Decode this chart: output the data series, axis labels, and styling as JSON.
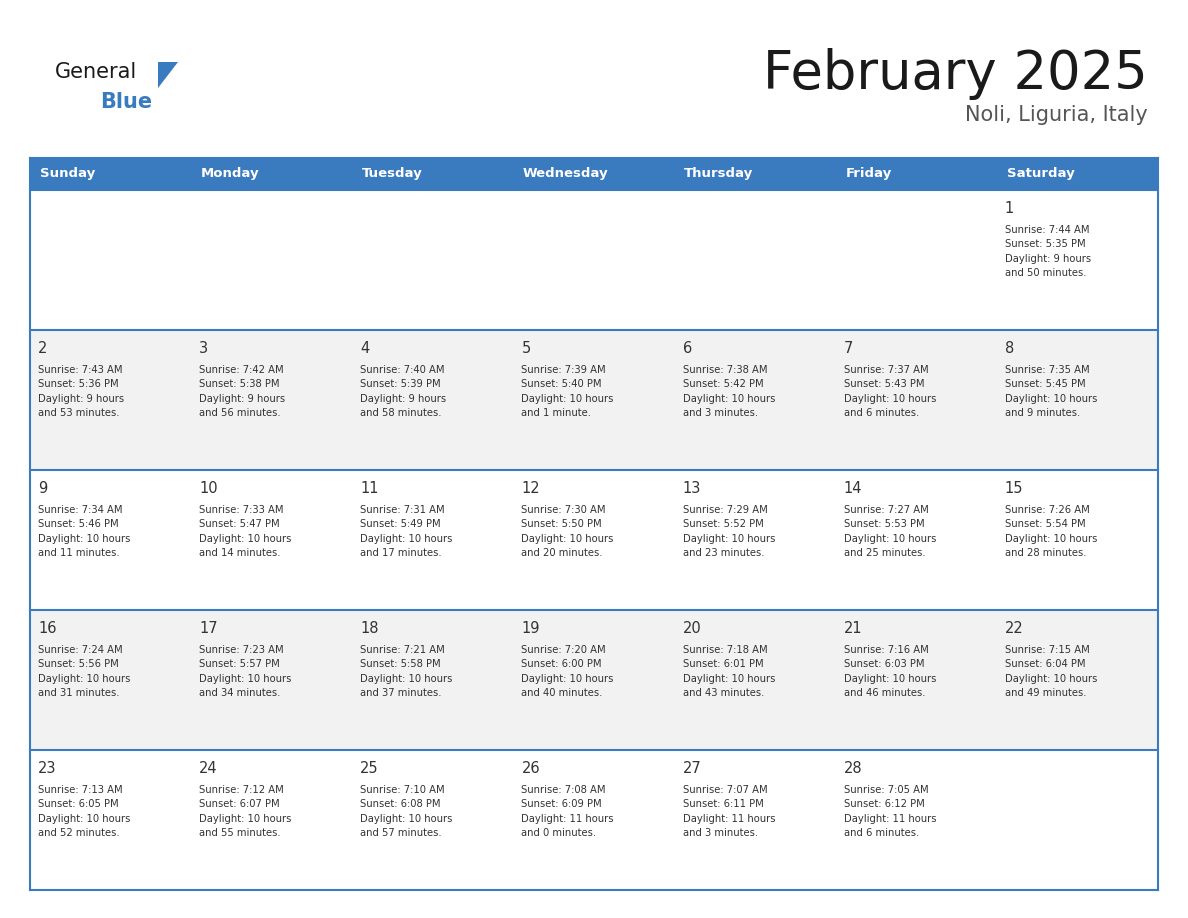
{
  "title": "February 2025",
  "subtitle": "Noli, Liguria, Italy",
  "header_color": "#3a7abf",
  "header_text_color": "#ffffff",
  "cell_bg_even": "#ffffff",
  "cell_bg_odd": "#f2f2f2",
  "border_color": "#3a7abf",
  "text_color": "#333333",
  "days_of_week": [
    "Sunday",
    "Monday",
    "Tuesday",
    "Wednesday",
    "Thursday",
    "Friday",
    "Saturday"
  ],
  "weeks": [
    [
      {
        "day": "",
        "info": ""
      },
      {
        "day": "",
        "info": ""
      },
      {
        "day": "",
        "info": ""
      },
      {
        "day": "",
        "info": ""
      },
      {
        "day": "",
        "info": ""
      },
      {
        "day": "",
        "info": ""
      },
      {
        "day": "1",
        "info": "Sunrise: 7:44 AM\nSunset: 5:35 PM\nDaylight: 9 hours\nand 50 minutes."
      }
    ],
    [
      {
        "day": "2",
        "info": "Sunrise: 7:43 AM\nSunset: 5:36 PM\nDaylight: 9 hours\nand 53 minutes."
      },
      {
        "day": "3",
        "info": "Sunrise: 7:42 AM\nSunset: 5:38 PM\nDaylight: 9 hours\nand 56 minutes."
      },
      {
        "day": "4",
        "info": "Sunrise: 7:40 AM\nSunset: 5:39 PM\nDaylight: 9 hours\nand 58 minutes."
      },
      {
        "day": "5",
        "info": "Sunrise: 7:39 AM\nSunset: 5:40 PM\nDaylight: 10 hours\nand 1 minute."
      },
      {
        "day": "6",
        "info": "Sunrise: 7:38 AM\nSunset: 5:42 PM\nDaylight: 10 hours\nand 3 minutes."
      },
      {
        "day": "7",
        "info": "Sunrise: 7:37 AM\nSunset: 5:43 PM\nDaylight: 10 hours\nand 6 minutes."
      },
      {
        "day": "8",
        "info": "Sunrise: 7:35 AM\nSunset: 5:45 PM\nDaylight: 10 hours\nand 9 minutes."
      }
    ],
    [
      {
        "day": "9",
        "info": "Sunrise: 7:34 AM\nSunset: 5:46 PM\nDaylight: 10 hours\nand 11 minutes."
      },
      {
        "day": "10",
        "info": "Sunrise: 7:33 AM\nSunset: 5:47 PM\nDaylight: 10 hours\nand 14 minutes."
      },
      {
        "day": "11",
        "info": "Sunrise: 7:31 AM\nSunset: 5:49 PM\nDaylight: 10 hours\nand 17 minutes."
      },
      {
        "day": "12",
        "info": "Sunrise: 7:30 AM\nSunset: 5:50 PM\nDaylight: 10 hours\nand 20 minutes."
      },
      {
        "day": "13",
        "info": "Sunrise: 7:29 AM\nSunset: 5:52 PM\nDaylight: 10 hours\nand 23 minutes."
      },
      {
        "day": "14",
        "info": "Sunrise: 7:27 AM\nSunset: 5:53 PM\nDaylight: 10 hours\nand 25 minutes."
      },
      {
        "day": "15",
        "info": "Sunrise: 7:26 AM\nSunset: 5:54 PM\nDaylight: 10 hours\nand 28 minutes."
      }
    ],
    [
      {
        "day": "16",
        "info": "Sunrise: 7:24 AM\nSunset: 5:56 PM\nDaylight: 10 hours\nand 31 minutes."
      },
      {
        "day": "17",
        "info": "Sunrise: 7:23 AM\nSunset: 5:57 PM\nDaylight: 10 hours\nand 34 minutes."
      },
      {
        "day": "18",
        "info": "Sunrise: 7:21 AM\nSunset: 5:58 PM\nDaylight: 10 hours\nand 37 minutes."
      },
      {
        "day": "19",
        "info": "Sunrise: 7:20 AM\nSunset: 6:00 PM\nDaylight: 10 hours\nand 40 minutes."
      },
      {
        "day": "20",
        "info": "Sunrise: 7:18 AM\nSunset: 6:01 PM\nDaylight: 10 hours\nand 43 minutes."
      },
      {
        "day": "21",
        "info": "Sunrise: 7:16 AM\nSunset: 6:03 PM\nDaylight: 10 hours\nand 46 minutes."
      },
      {
        "day": "22",
        "info": "Sunrise: 7:15 AM\nSunset: 6:04 PM\nDaylight: 10 hours\nand 49 minutes."
      }
    ],
    [
      {
        "day": "23",
        "info": "Sunrise: 7:13 AM\nSunset: 6:05 PM\nDaylight: 10 hours\nand 52 minutes."
      },
      {
        "day": "24",
        "info": "Sunrise: 7:12 AM\nSunset: 6:07 PM\nDaylight: 10 hours\nand 55 minutes."
      },
      {
        "day": "25",
        "info": "Sunrise: 7:10 AM\nSunset: 6:08 PM\nDaylight: 10 hours\nand 57 minutes."
      },
      {
        "day": "26",
        "info": "Sunrise: 7:08 AM\nSunset: 6:09 PM\nDaylight: 11 hours\nand 0 minutes."
      },
      {
        "day": "27",
        "info": "Sunrise: 7:07 AM\nSunset: 6:11 PM\nDaylight: 11 hours\nand 3 minutes."
      },
      {
        "day": "28",
        "info": "Sunrise: 7:05 AM\nSunset: 6:12 PM\nDaylight: 11 hours\nand 6 minutes."
      },
      {
        "day": "",
        "info": ""
      }
    ]
  ],
  "logo_general_color": "#1a1a1a",
  "logo_blue_color": "#3a7abf",
  "logo_triangle_color": "#3a7abf",
  "title_color": "#1a1a1a",
  "subtitle_color": "#555555"
}
